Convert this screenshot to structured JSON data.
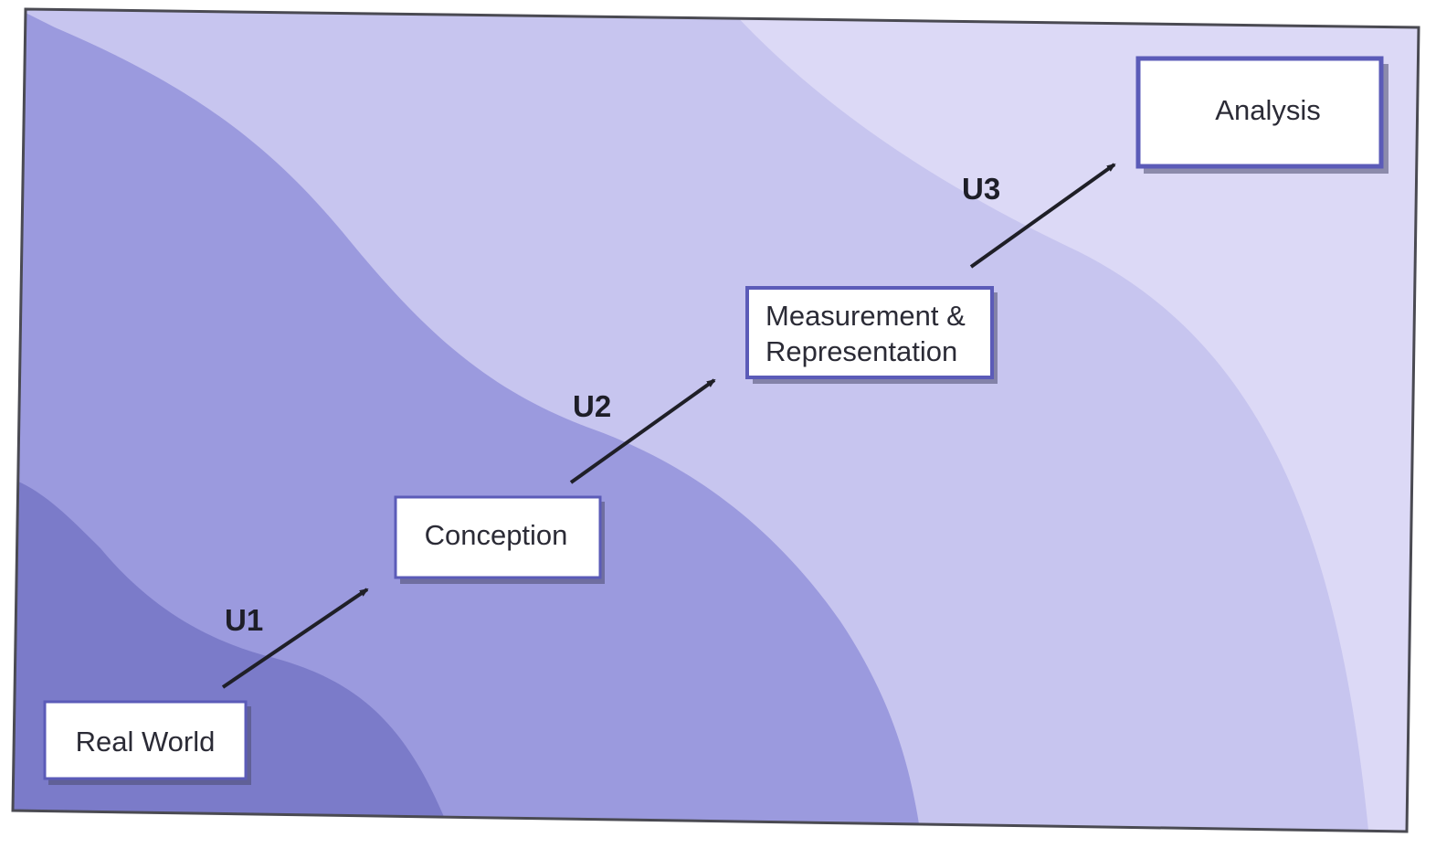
{
  "colors": {
    "frame": "#4a4a52",
    "band_lightest": "#dcd9f6",
    "band_light": "#c7c5ef",
    "band_mid": "#9b9ade",
    "band_dark": "#7b7bc9",
    "box_fill": "#ffffff",
    "box_border": "#5b5bb8",
    "arrow": "#1f1f27"
  },
  "stages": [
    {
      "id": "real-world",
      "label": "Real World"
    },
    {
      "id": "conception",
      "label": "Conception"
    },
    {
      "id": "measurement",
      "label_line1": "Measurement &",
      "label_line2": "Representation"
    },
    {
      "id": "analysis",
      "label": "Analysis"
    }
  ],
  "transitions": [
    {
      "label": "U1"
    },
    {
      "label": "U2"
    },
    {
      "label": "U3"
    }
  ]
}
